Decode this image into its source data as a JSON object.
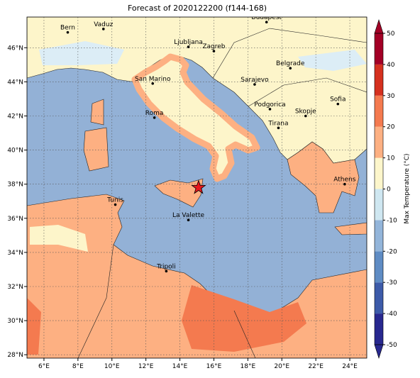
{
  "chart_data": {
    "type": "map",
    "title": "Forecast of 2020122200 (f144-168)",
    "xlim": [
      5,
      25
    ],
    "ylim": [
      27.8,
      47.8
    ],
    "xticks": [
      {
        "value": 6,
        "label": "6°E"
      },
      {
        "value": 8,
        "label": "8°E"
      },
      {
        "value": 10,
        "label": "10°E"
      },
      {
        "value": 12,
        "label": "12°E"
      },
      {
        "value": 14,
        "label": "14°E"
      },
      {
        "value": 16,
        "label": "16°E"
      },
      {
        "value": 18,
        "label": "18°E"
      },
      {
        "value": 20,
        "label": "20°E"
      },
      {
        "value": 22,
        "label": "22°E"
      },
      {
        "value": 24,
        "label": "24°E"
      }
    ],
    "yticks": [
      {
        "value": 28,
        "label": "28°N"
      },
      {
        "value": 30,
        "label": "30°N"
      },
      {
        "value": 32,
        "label": "32°N"
      },
      {
        "value": 34,
        "label": "34°N"
      },
      {
        "value": 36,
        "label": "36°N"
      },
      {
        "value": 38,
        "label": "38°N"
      },
      {
        "value": 40,
        "label": "40°N"
      },
      {
        "value": 42,
        "label": "42°N"
      },
      {
        "value": 44,
        "label": "44°N"
      },
      {
        "value": 46,
        "label": "46°N"
      }
    ],
    "grid": true,
    "cities": [
      {
        "name": "Bern",
        "lon": 7.4,
        "lat": 46.9
      },
      {
        "name": "Vaduz",
        "lon": 9.5,
        "lat": 47.1
      },
      {
        "name": "Budapest",
        "lon": 19.1,
        "lat": 47.5
      },
      {
        "name": "Ljubljana",
        "lon": 14.5,
        "lat": 46.05
      },
      {
        "name": "Zagreb",
        "lon": 16.0,
        "lat": 45.8
      },
      {
        "name": "San Marino",
        "lon": 12.4,
        "lat": 43.9
      },
      {
        "name": "Belgrade",
        "lon": 20.5,
        "lat": 44.8
      },
      {
        "name": "Sarajevo",
        "lon": 18.4,
        "lat": 43.85
      },
      {
        "name": "Sofia",
        "lon": 23.3,
        "lat": 42.7
      },
      {
        "name": "Roma",
        "lon": 12.5,
        "lat": 41.9
      },
      {
        "name": "Podgorica",
        "lon": 19.3,
        "lat": 42.4
      },
      {
        "name": "Skopje",
        "lon": 21.4,
        "lat": 42.0
      },
      {
        "name": "Tirana",
        "lon": 19.8,
        "lat": 41.3
      },
      {
        "name": "Athens",
        "lon": 23.7,
        "lat": 38.0
      },
      {
        "name": "Tunis",
        "lon": 10.2,
        "lat": 36.8
      },
      {
        "name": "La Valette",
        "lon": 14.5,
        "lat": 35.9
      },
      {
        "name": "Tripoli",
        "lon": 13.2,
        "lat": 32.9
      }
    ],
    "marker": {
      "lon": 15.1,
      "lat": 37.8,
      "color": "#e8161b"
    },
    "colorbar": {
      "label": "Max Temperature (°C)",
      "lim": [
        -50,
        50
      ],
      "ticks": [
        -50,
        -40,
        -30,
        -20,
        -10,
        0,
        10,
        20,
        30,
        40,
        50
      ],
      "colors": [
        "#28288f",
        "#3d5ba9",
        "#5f8cc4",
        "#93b5da",
        "#cfe7f1",
        "#fdf6cb",
        "#fdb082",
        "#f47a4f",
        "#d5301f",
        "#a30026"
      ]
    }
  }
}
